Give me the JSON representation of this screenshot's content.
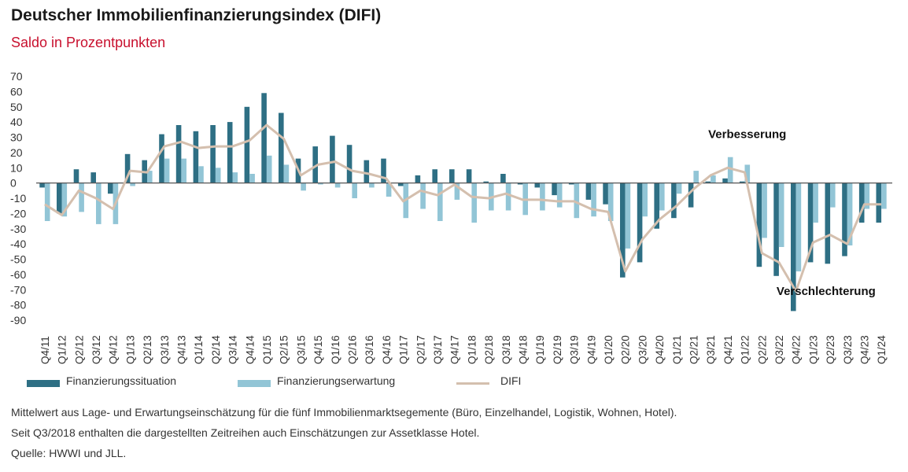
{
  "header": {
    "title": "Deutscher Immobilienfinanzierungsindex (DIFI)",
    "subtitle": "Saldo in Prozentpunkten"
  },
  "colors": {
    "situation": "#2e6f84",
    "expectation": "#92c5d6",
    "difi": "#d4bfae",
    "axis": "#555555",
    "subtitle": "#c8102e"
  },
  "chart_data": {
    "type": "bar",
    "ylim": [
      -90,
      70
    ],
    "yticks": [
      70,
      60,
      50,
      40,
      30,
      20,
      10,
      0,
      -10,
      -20,
      -30,
      -40,
      -50,
      -60,
      -70,
      -80,
      -90
    ],
    "categories": [
      "Q4/11",
      "Q1/12",
      "Q2/12",
      "Q3/12",
      "Q4/12",
      "Q1/13",
      "Q2/13",
      "Q3/13",
      "Q4/13",
      "Q1/14",
      "Q2/14",
      "Q3/14",
      "Q4/14",
      "Q1/15",
      "Q2/15",
      "Q3/15",
      "Q4/15",
      "Q1/16",
      "Q2/16",
      "Q3/16",
      "Q4/16",
      "Q1/17",
      "Q2/17",
      "Q3/17",
      "Q4/17",
      "Q1/18",
      "Q2/18",
      "Q3/18",
      "Q4/18",
      "Q1/19",
      "Q2/19",
      "Q3/19",
      "Q4/19",
      "Q1/20",
      "Q2/20",
      "Q3/20",
      "Q4/20",
      "Q1/21",
      "Q2/21",
      "Q3/21",
      "Q4/21",
      "Q1/22",
      "Q2/22",
      "Q3/22",
      "Q4/22",
      "Q1/23",
      "Q2/23",
      "Q3/23",
      "Q4/23",
      "Q1/24"
    ],
    "labeled_ticks": [
      "Q4/11",
      "Q1/12",
      "Q2/12",
      "Q3/12",
      "Q4/12",
      "Q1/13",
      "Q2/13",
      "Q3/13",
      "Q4/13",
      "Q1/14",
      "Q2/14",
      "Q3/14",
      "Q4/14",
      "Q1/15",
      "Q2/15",
      "Q3/15",
      "Q4/15",
      "Q1/16",
      "Q2/16",
      "Q3/16",
      "Q4/16",
      "Q1/17",
      "Q2/17",
      "Q3/17",
      "Q4/17",
      "Q1/18",
      "Q2/18",
      "Q3/18",
      "Q4/18",
      "Q1/19",
      "Q2/19",
      "Q3/19",
      "Q4/19",
      "Q1/20",
      "Q2/20",
      "Q3/20",
      "Q4/20",
      "Q1/21",
      "Q2/21",
      "Q3/21",
      "Q4/21",
      "Q1/22",
      "Q2/22",
      "Q3/22",
      "Q4/22",
      "Q1/23",
      "Q2/23",
      "Q3/23",
      "Q4/23",
      "Q1/24"
    ],
    "series": [
      {
        "name": "Finanzierungssituation",
        "kind": "bar",
        "values": [
          -3,
          -20,
          9,
          7,
          -7,
          19,
          15,
          32,
          38,
          34,
          38,
          40,
          50,
          59,
          46,
          16,
          24,
          31,
          25,
          15,
          16,
          -2,
          5,
          9,
          9,
          9,
          1,
          6,
          -1,
          -3,
          -8,
          -1,
          -11,
          -14,
          -62,
          -52,
          -30,
          -23,
          -16,
          1,
          3,
          1,
          -55,
          -61,
          -84,
          -52,
          -53,
          -48,
          -26,
          -26
        ],
        "colors": "situation"
      },
      {
        "name": "Finanzierungserwartung",
        "kind": "bar",
        "values": [
          -25,
          -22,
          -19,
          -27,
          -27,
          -2,
          8,
          16,
          16,
          11,
          10,
          7,
          6,
          18,
          12,
          -5,
          -1,
          -3,
          -10,
          -3,
          -9,
          -23,
          -17,
          -25,
          -11,
          -26,
          -18,
          -18,
          -21,
          -18,
          -16,
          -23,
          -22,
          -25,
          -43,
          -22,
          -18,
          -7,
          8,
          5,
          17,
          12,
          -36,
          -42,
          -58,
          -26,
          -16,
          -41,
          -17,
          -17
        ]
      },
      {
        "name": "DIFI",
        "kind": "line",
        "values": [
          -14,
          -21,
          -5,
          -10,
          -17,
          8,
          7,
          24,
          27,
          23,
          24,
          24,
          28,
          38,
          29,
          5,
          12,
          14,
          8,
          6,
          3,
          -12,
          -5,
          -8,
          -1,
          -9,
          -10,
          -7,
          -11,
          -11,
          -12,
          -12,
          -17,
          -19,
          -58,
          -37,
          -24,
          -15,
          -4,
          5,
          10,
          7,
          -46,
          -52,
          -71,
          -39,
          -34,
          -40,
          -14,
          -14
        ]
      }
    ],
    "annotations": [
      {
        "text": "Verbesserung",
        "category": "Q3/21",
        "value": 32
      },
      {
        "text": "Verschlechterung",
        "category": "Q3/22",
        "value": -71
      }
    ]
  },
  "legend": [
    {
      "label": "Finanzierungssituation"
    },
    {
      "label": "Finanzierungserwartung"
    },
    {
      "label": "DIFI"
    }
  ],
  "footnotes": {
    "line1": "Mittelwert aus Lage- und Erwartungseinschätzung für die fünf Immobilienmarktsegemente (Büro, Einzelhandel, Logistik, Wohnen, Hotel).",
    "line2": "Seit Q3/2018 enthalten die dargestellten Zeitreihen auch Einschätzungen zur Assetklasse Hotel.",
    "line3": "Quelle: HWWI und JLL."
  }
}
